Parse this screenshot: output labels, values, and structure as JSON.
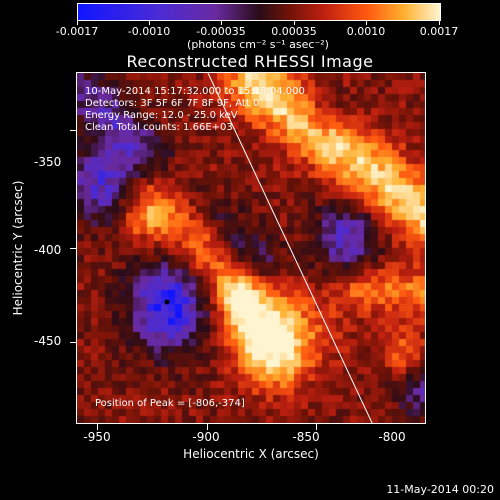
{
  "colorbar": {
    "labels": [
      "-0.0017",
      "-0.0010",
      "-0.00035",
      "0.00035",
      "0.0010",
      "0.0017"
    ],
    "units": "(photons cm⁻² s⁻¹ asec⁻²)",
    "colors": [
      "#1015ff",
      "#4a2bd6",
      "#6a2aa0",
      "#2a0c18",
      "#6d1207",
      "#c02010",
      "#ff5a10",
      "#ffb030",
      "#fff4d0"
    ]
  },
  "image": {
    "title": "Reconstructed RHESSI Image",
    "info_lines": [
      "10-May-2014 15:17:32.000 to 15:18:04.000",
      "Detectors: 3F 5F 6F 7F 8F 9F, Att 0",
      "Energy Range: 12.0 - 25.0 keV",
      "Clean    Total counts: 1.66E+03"
    ],
    "peak_label": "Position of Peak = [-806,-374]"
  },
  "axes": {
    "xlabel": "Heliocentric X (arcsec)",
    "ylabel": "Heliocentric Y (arcsec)",
    "xticks": [
      "-950",
      "-900",
      "-850",
      "-800"
    ],
    "yticks": [
      "-350",
      "-400",
      "-450"
    ],
    "xrange": [
      -972,
      -811
    ],
    "yrange": [
      -334,
      -496
    ]
  },
  "footer": {
    "timestamp": "11-May-2014 00:20"
  }
}
